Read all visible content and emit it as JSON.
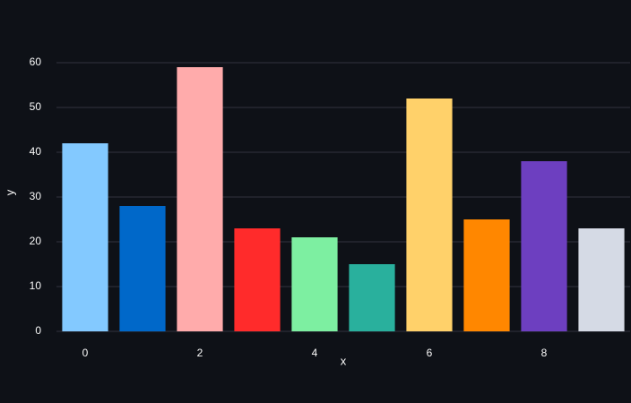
{
  "chart_data": {
    "type": "bar",
    "x": [
      0,
      1,
      2,
      3,
      4,
      5,
      6,
      7,
      8,
      9
    ],
    "values": [
      42,
      28,
      59,
      23,
      21,
      15,
      52,
      25,
      38,
      23
    ],
    "colors": [
      "#83c9ff",
      "#0068c9",
      "#ffabab",
      "#ff2b2b",
      "#7defa1",
      "#29b09d",
      "#ffd16a",
      "#ff8700",
      "#6d3fc0",
      "#d5dae5"
    ],
    "xlabel": "x",
    "ylabel": "y",
    "xlim": [
      -0.5,
      9.5
    ],
    "xticks": [
      0,
      2,
      4,
      6,
      8
    ],
    "ylim": [
      0,
      62
    ],
    "yticks": [
      0,
      10,
      20,
      30,
      40,
      50,
      60
    ],
    "grid": true
  }
}
